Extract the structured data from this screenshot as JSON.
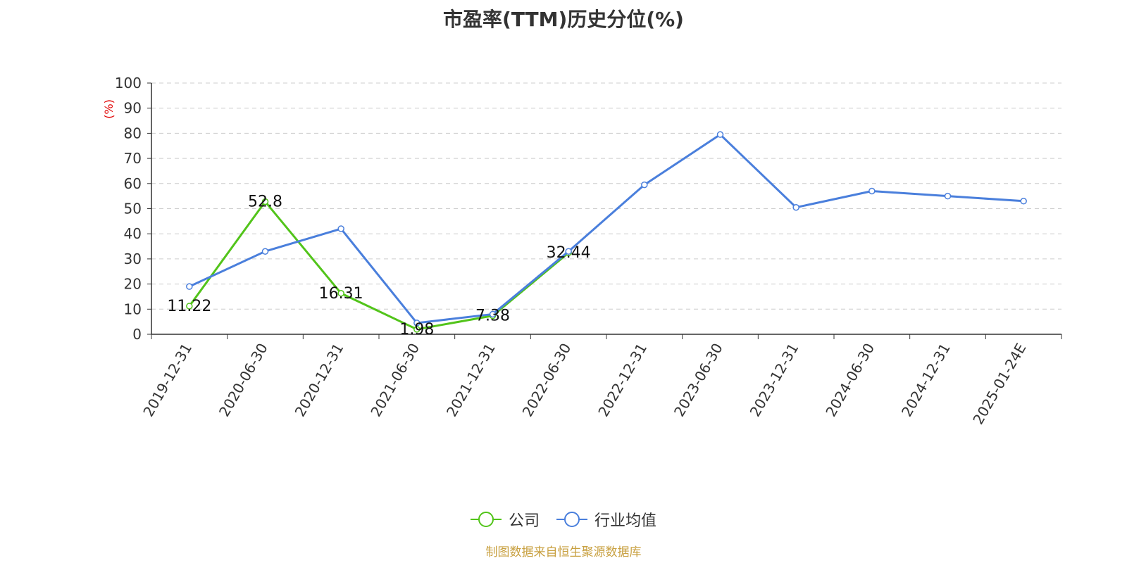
{
  "chart_data": {
    "type": "line",
    "title": "市盈率(TTM)历史分位(%)",
    "ylabel": "(%)",
    "ylim": [
      0,
      100
    ],
    "yticks": [
      0,
      10,
      20,
      30,
      40,
      50,
      60,
      70,
      80,
      90,
      100
    ],
    "categories": [
      "2019-12-31",
      "2020-06-30",
      "2020-12-31",
      "2021-06-30",
      "2021-12-31",
      "2022-06-30",
      "2022-12-31",
      "2023-06-30",
      "2023-12-31",
      "2024-06-30",
      "2024-12-31",
      "2025-01-24E"
    ],
    "grid": true,
    "legend_position": "bottom",
    "series": [
      {
        "name": "公司",
        "color": "#52c41a",
        "values": [
          11.22,
          52.8,
          16.31,
          1.98,
          7.38,
          32.44,
          null,
          null,
          null,
          null,
          null,
          null
        ],
        "labels": [
          "11.22",
          "52.8",
          "16.31",
          "1.98",
          "7.38",
          "32.44",
          null,
          null,
          null,
          null,
          null,
          null
        ]
      },
      {
        "name": "行业均值",
        "color": "#4a7fdc",
        "values": [
          19.0,
          33.0,
          42.0,
          4.5,
          8.0,
          33.0,
          59.5,
          79.5,
          50.5,
          57.0,
          55.0,
          53.0
        ],
        "labels": null
      }
    ]
  },
  "source": "制图数据来自恒生聚源数据库"
}
